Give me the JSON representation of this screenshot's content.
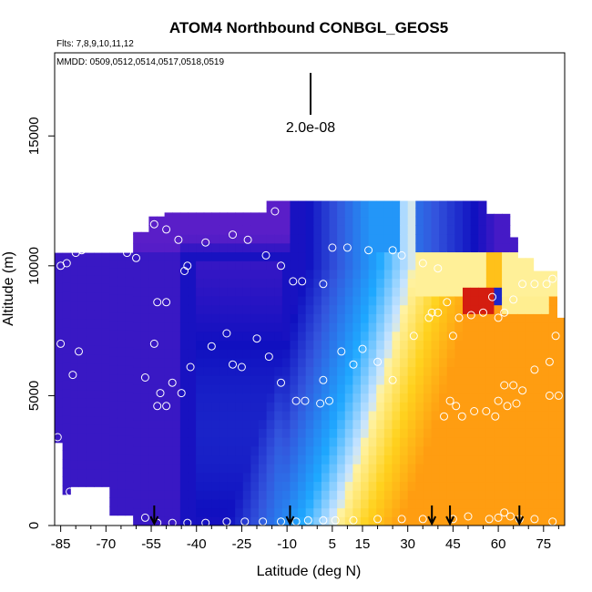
{
  "chart_data": {
    "type": "heatmap",
    "title": "ATOM4 Northbound CONBGL_GEOS5",
    "subtitle_flights": "Flts: 7,8,9,10,11,12",
    "subtitle_dates": "MMDD: 0509,0512,0514,0517,0518,0519",
    "xlabel": "Latitude (deg N)",
    "ylabel": "Altitude (m)",
    "xlim": [
      -87,
      82
    ],
    "ylim": [
      0,
      18200
    ],
    "x_ticks": [
      -85,
      -70,
      -55,
      -40,
      -25,
      -10,
      5,
      15,
      30,
      45,
      60,
      75
    ],
    "x_minor_ticks": [
      -80,
      -75,
      -65,
      -60,
      -50,
      -45,
      -35,
      -30,
      -20,
      -15,
      -5,
      0,
      10,
      20,
      25,
      35,
      40,
      50,
      55,
      65,
      70,
      80
    ],
    "y_ticks": [
      0,
      5000,
      10000,
      15000
    ],
    "scale_bar_label": "2.0e-08",
    "arrow_latitudes": [
      -54,
      -9,
      38,
      44,
      67
    ],
    "colors": {
      "deep_purple": "#5a1ec8",
      "dark_blue": "#1010c0",
      "royal_blue": "#3355dd",
      "sky_blue": "#1ea8ff",
      "pale_blue": "#c8e4ff",
      "pale_yellow": "#fff2a0",
      "yellow": "#ffd21e",
      "orange": "#ff9a10",
      "red": "#d01010"
    },
    "observation_points": [
      [
        -85,
        10000
      ],
      [
        -83,
        10100
      ],
      [
        -80,
        10500
      ],
      [
        -78,
        10600
      ],
      [
        -75,
        11200
      ],
      [
        -73,
        11300
      ],
      [
        -71,
        11400
      ],
      [
        -63,
        10500
      ],
      [
        -60,
        10300
      ],
      [
        -58,
        11700
      ],
      [
        -54,
        11600
      ],
      [
        -50,
        11400
      ],
      [
        -46,
        11000
      ],
      [
        -43,
        10000
      ],
      [
        -44,
        9800
      ],
      [
        -37,
        10900
      ],
      [
        -28,
        11200
      ],
      [
        -23,
        11000
      ],
      [
        -14,
        12100
      ],
      [
        -17,
        10400
      ],
      [
        -12,
        10000
      ],
      [
        -8,
        9400
      ],
      [
        -5,
        9400
      ],
      [
        2,
        9300
      ],
      [
        5,
        10700
      ],
      [
        10,
        10700
      ],
      [
        17,
        10600
      ],
      [
        25,
        10600
      ],
      [
        28,
        10400
      ],
      [
        35,
        10100
      ],
      [
        40,
        9900
      ],
      [
        -53,
        8600
      ],
      [
        -50,
        8600
      ],
      [
        -30,
        7400
      ],
      [
        -20,
        7200
      ],
      [
        -28,
        6200
      ],
      [
        -25,
        6100
      ],
      [
        -35,
        6900
      ],
      [
        -85,
        7000
      ],
      [
        -79,
        6700
      ],
      [
        -81,
        5800
      ],
      [
        -54,
        7000
      ],
      [
        -57,
        5700
      ],
      [
        -42,
        6100
      ],
      [
        -45,
        5100
      ],
      [
        -48,
        5500
      ],
      [
        -52,
        5100
      ],
      [
        -53,
        4600
      ],
      [
        -50,
        4600
      ],
      [
        -16,
        6500
      ],
      [
        -12,
        5500
      ],
      [
        -7,
        4800
      ],
      [
        -4,
        4800
      ],
      [
        1,
        4700
      ],
      [
        4,
        4800
      ],
      [
        2,
        5600
      ],
      [
        8,
        6700
      ],
      [
        12,
        6200
      ],
      [
        15,
        6800
      ],
      [
        20,
        6300
      ],
      [
        25,
        5600
      ],
      [
        32,
        7300
      ],
      [
        37,
        8000
      ],
      [
        38,
        8200
      ],
      [
        40,
        8200
      ],
      [
        43,
        8600
      ],
      [
        45,
        7300
      ],
      [
        47,
        8000
      ],
      [
        51,
        8100
      ],
      [
        55,
        8200
      ],
      [
        58,
        8800
      ],
      [
        60,
        8000
      ],
      [
        62,
        8200
      ],
      [
        65,
        8700
      ],
      [
        68,
        9300
      ],
      [
        72,
        9300
      ],
      [
        76,
        9300
      ],
      [
        78,
        9500
      ],
      [
        79,
        7300
      ],
      [
        77,
        6300
      ],
      [
        72,
        6000
      ],
      [
        68,
        5200
      ],
      [
        66,
        4700
      ],
      [
        63,
        4600
      ],
      [
        60,
        4800
      ],
      [
        59,
        4200
      ],
      [
        56,
        4400
      ],
      [
        52,
        4400
      ],
      [
        48,
        4200
      ],
      [
        46,
        4600
      ],
      [
        44,
        4800
      ],
      [
        42,
        4200
      ],
      [
        77,
        5000
      ],
      [
        80,
        5000
      ],
      [
        65,
        5400
      ],
      [
        62,
        5400
      ],
      [
        68,
        11000
      ],
      [
        71,
        10800
      ],
      [
        72,
        10600
      ],
      [
        -86,
        3400
      ],
      [
        -82,
        1300
      ],
      [
        -57,
        300
      ],
      [
        -53,
        100
      ],
      [
        -48,
        100
      ],
      [
        -43,
        100
      ],
      [
        -37,
        100
      ],
      [
        -30,
        150
      ],
      [
        -24,
        150
      ],
      [
        -18,
        150
      ],
      [
        -12,
        150
      ],
      [
        -7,
        150
      ],
      [
        -3,
        200
      ],
      [
        2,
        200
      ],
      [
        6,
        200
      ],
      [
        12,
        200
      ],
      [
        20,
        250
      ],
      [
        28,
        250
      ],
      [
        35,
        250
      ],
      [
        45,
        250
      ],
      [
        50,
        350
      ],
      [
        57,
        250
      ],
      [
        60,
        300
      ],
      [
        62,
        500
      ],
      [
        64,
        350
      ],
      [
        67,
        250
      ],
      [
        72,
        250
      ],
      [
        78,
        150
      ]
    ]
  }
}
